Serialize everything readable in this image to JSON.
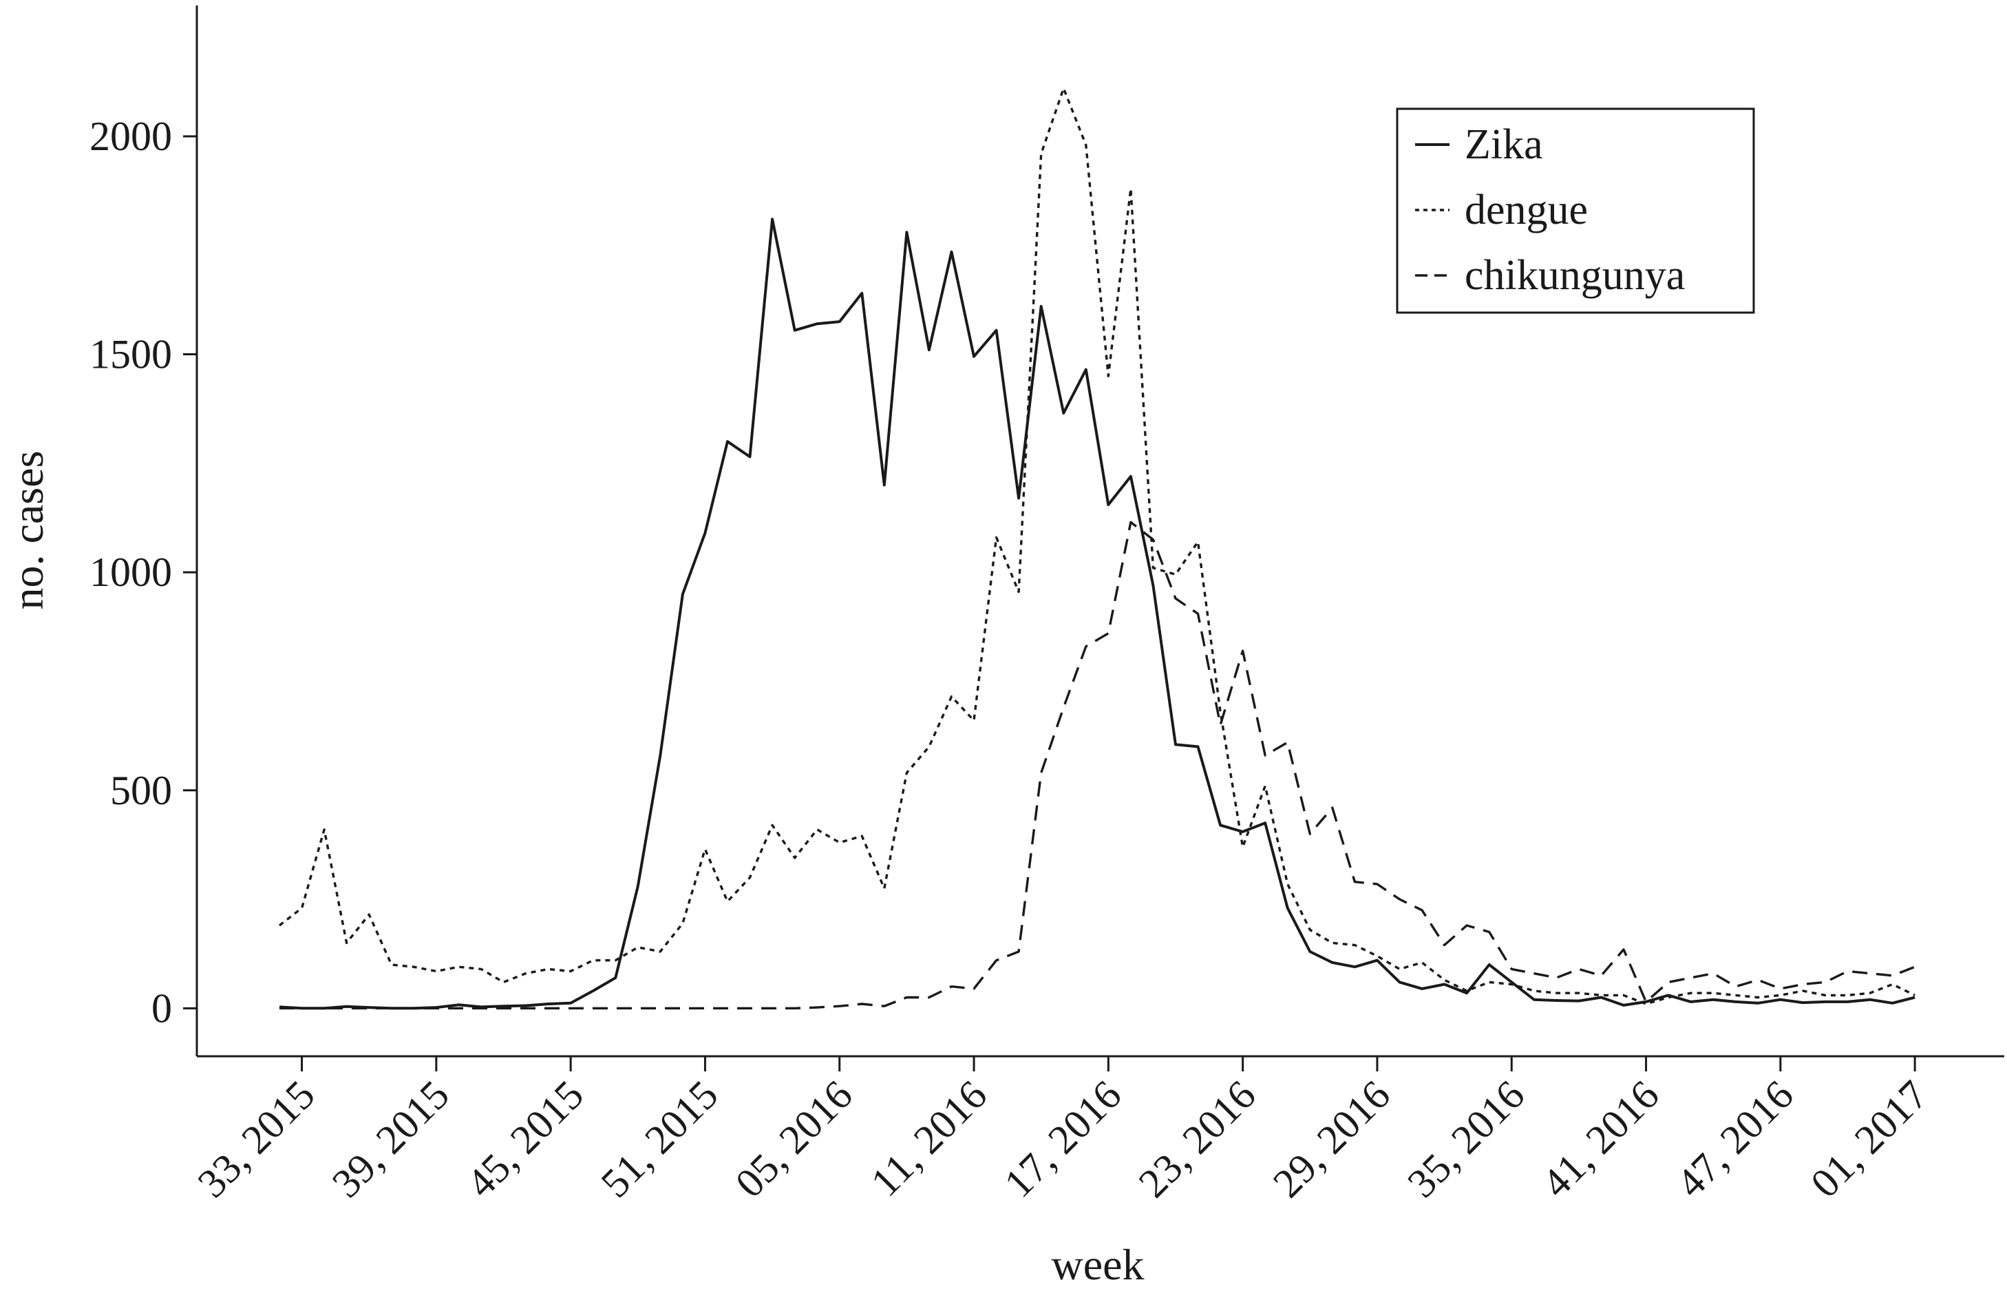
{
  "chart_data": {
    "type": "line",
    "xlabel": "week",
    "ylabel": "no. cases",
    "ylim": [
      -110,
      2300
    ],
    "yticks": [
      0,
      500,
      1000,
      1500,
      2000
    ],
    "grid": false,
    "legend_position": "top-right",
    "x": [
      "32, 2015",
      "33, 2015",
      "34, 2015",
      "35, 2015",
      "36, 2015",
      "37, 2015",
      "38, 2015",
      "39, 2015",
      "40, 2015",
      "41, 2015",
      "42, 2015",
      "43, 2015",
      "44, 2015",
      "45, 2015",
      "46, 2015",
      "47, 2015",
      "48, 2015",
      "49, 2015",
      "50, 2015",
      "51, 2015",
      "52, 2015",
      "53, 2015",
      "01, 2016",
      "02, 2016",
      "03, 2016",
      "04, 2016",
      "05, 2016",
      "06, 2016",
      "07, 2016",
      "08, 2016",
      "09, 2016",
      "10, 2016",
      "11, 2016",
      "12, 2016",
      "13, 2016",
      "14, 2016",
      "15, 2016",
      "16, 2016",
      "17, 2016",
      "18, 2016",
      "19, 2016",
      "20, 2016",
      "21, 2016",
      "22, 2016",
      "23, 2016",
      "24, 2016",
      "25, 2016",
      "26, 2016",
      "27, 2016",
      "28, 2016",
      "29, 2016",
      "30, 2016",
      "31, 2016",
      "32, 2016",
      "33, 2016",
      "34, 2016",
      "35, 2016",
      "36, 2016",
      "37, 2016",
      "38, 2016",
      "39, 2016",
      "40, 2016",
      "41, 2016",
      "42, 2016",
      "43, 2016",
      "44, 2016",
      "45, 2016",
      "46, 2016",
      "47, 2016",
      "48, 2016",
      "49, 2016",
      "50, 2016",
      "51, 2016",
      "52, 2016"
    ],
    "xticks": [
      "33, 2015",
      "39, 2015",
      "45, 2015",
      "51, 2015",
      "05, 2016",
      "11, 2016",
      "17, 2016",
      "23, 2016",
      "29, 2016",
      "35, 2016",
      "41, 2016",
      "47, 2016",
      "01, 2017"
    ],
    "series": [
      {
        "name": "Zika",
        "style": "solid",
        "values": [
          3,
          0,
          0,
          4,
          2,
          0,
          0,
          2,
          8,
          3,
          5,
          6,
          10,
          12,
          40,
          70,
          280,
          580,
          950,
          1090,
          1300,
          1265,
          1810,
          1555,
          1570,
          1575,
          1640,
          1200,
          1780,
          1510,
          1735,
          1495,
          1555,
          1170,
          1610,
          1365,
          1465,
          1155,
          1220,
          970,
          605,
          600,
          420,
          405,
          425,
          230,
          130,
          105,
          95,
          110,
          60,
          45,
          55,
          35,
          100,
          60,
          20,
          18,
          17,
          25,
          7,
          15,
          30,
          15,
          20,
          15,
          12,
          20,
          13,
          15,
          15,
          20,
          12,
          25
        ]
      },
      {
        "name": "dengue",
        "style": "dotted",
        "values": [
          190,
          230,
          410,
          150,
          215,
          100,
          95,
          85,
          95,
          90,
          60,
          80,
          90,
          85,
          110,
          110,
          140,
          130,
          195,
          365,
          245,
          300,
          420,
          345,
          410,
          380,
          395,
          275,
          540,
          600,
          715,
          660,
          1080,
          955,
          1960,
          2110,
          1980,
          1450,
          1880,
          1010,
          995,
          1070,
          680,
          370,
          510,
          285,
          180,
          150,
          145,
          120,
          90,
          105,
          65,
          40,
          60,
          55,
          40,
          35,
          35,
          30,
          30,
          10,
          25,
          35,
          35,
          30,
          25,
          30,
          40,
          30,
          30,
          35,
          55,
          30
        ]
      },
      {
        "name": "chikungunya",
        "style": "dashed",
        "values": [
          0,
          0,
          0,
          0,
          0,
          0,
          0,
          0,
          0,
          0,
          0,
          0,
          0,
          0,
          0,
          0,
          0,
          0,
          0,
          0,
          0,
          0,
          0,
          0,
          2,
          5,
          10,
          5,
          25,
          25,
          50,
          45,
          110,
          130,
          540,
          690,
          830,
          860,
          1115,
          1075,
          940,
          905,
          650,
          820,
          580,
          610,
          400,
          460,
          290,
          285,
          250,
          225,
          145,
          190,
          175,
          90,
          80,
          70,
          90,
          75,
          135,
          15,
          60,
          70,
          80,
          50,
          65,
          45,
          55,
          60,
          85,
          80,
          75,
          95
        ]
      }
    ]
  }
}
